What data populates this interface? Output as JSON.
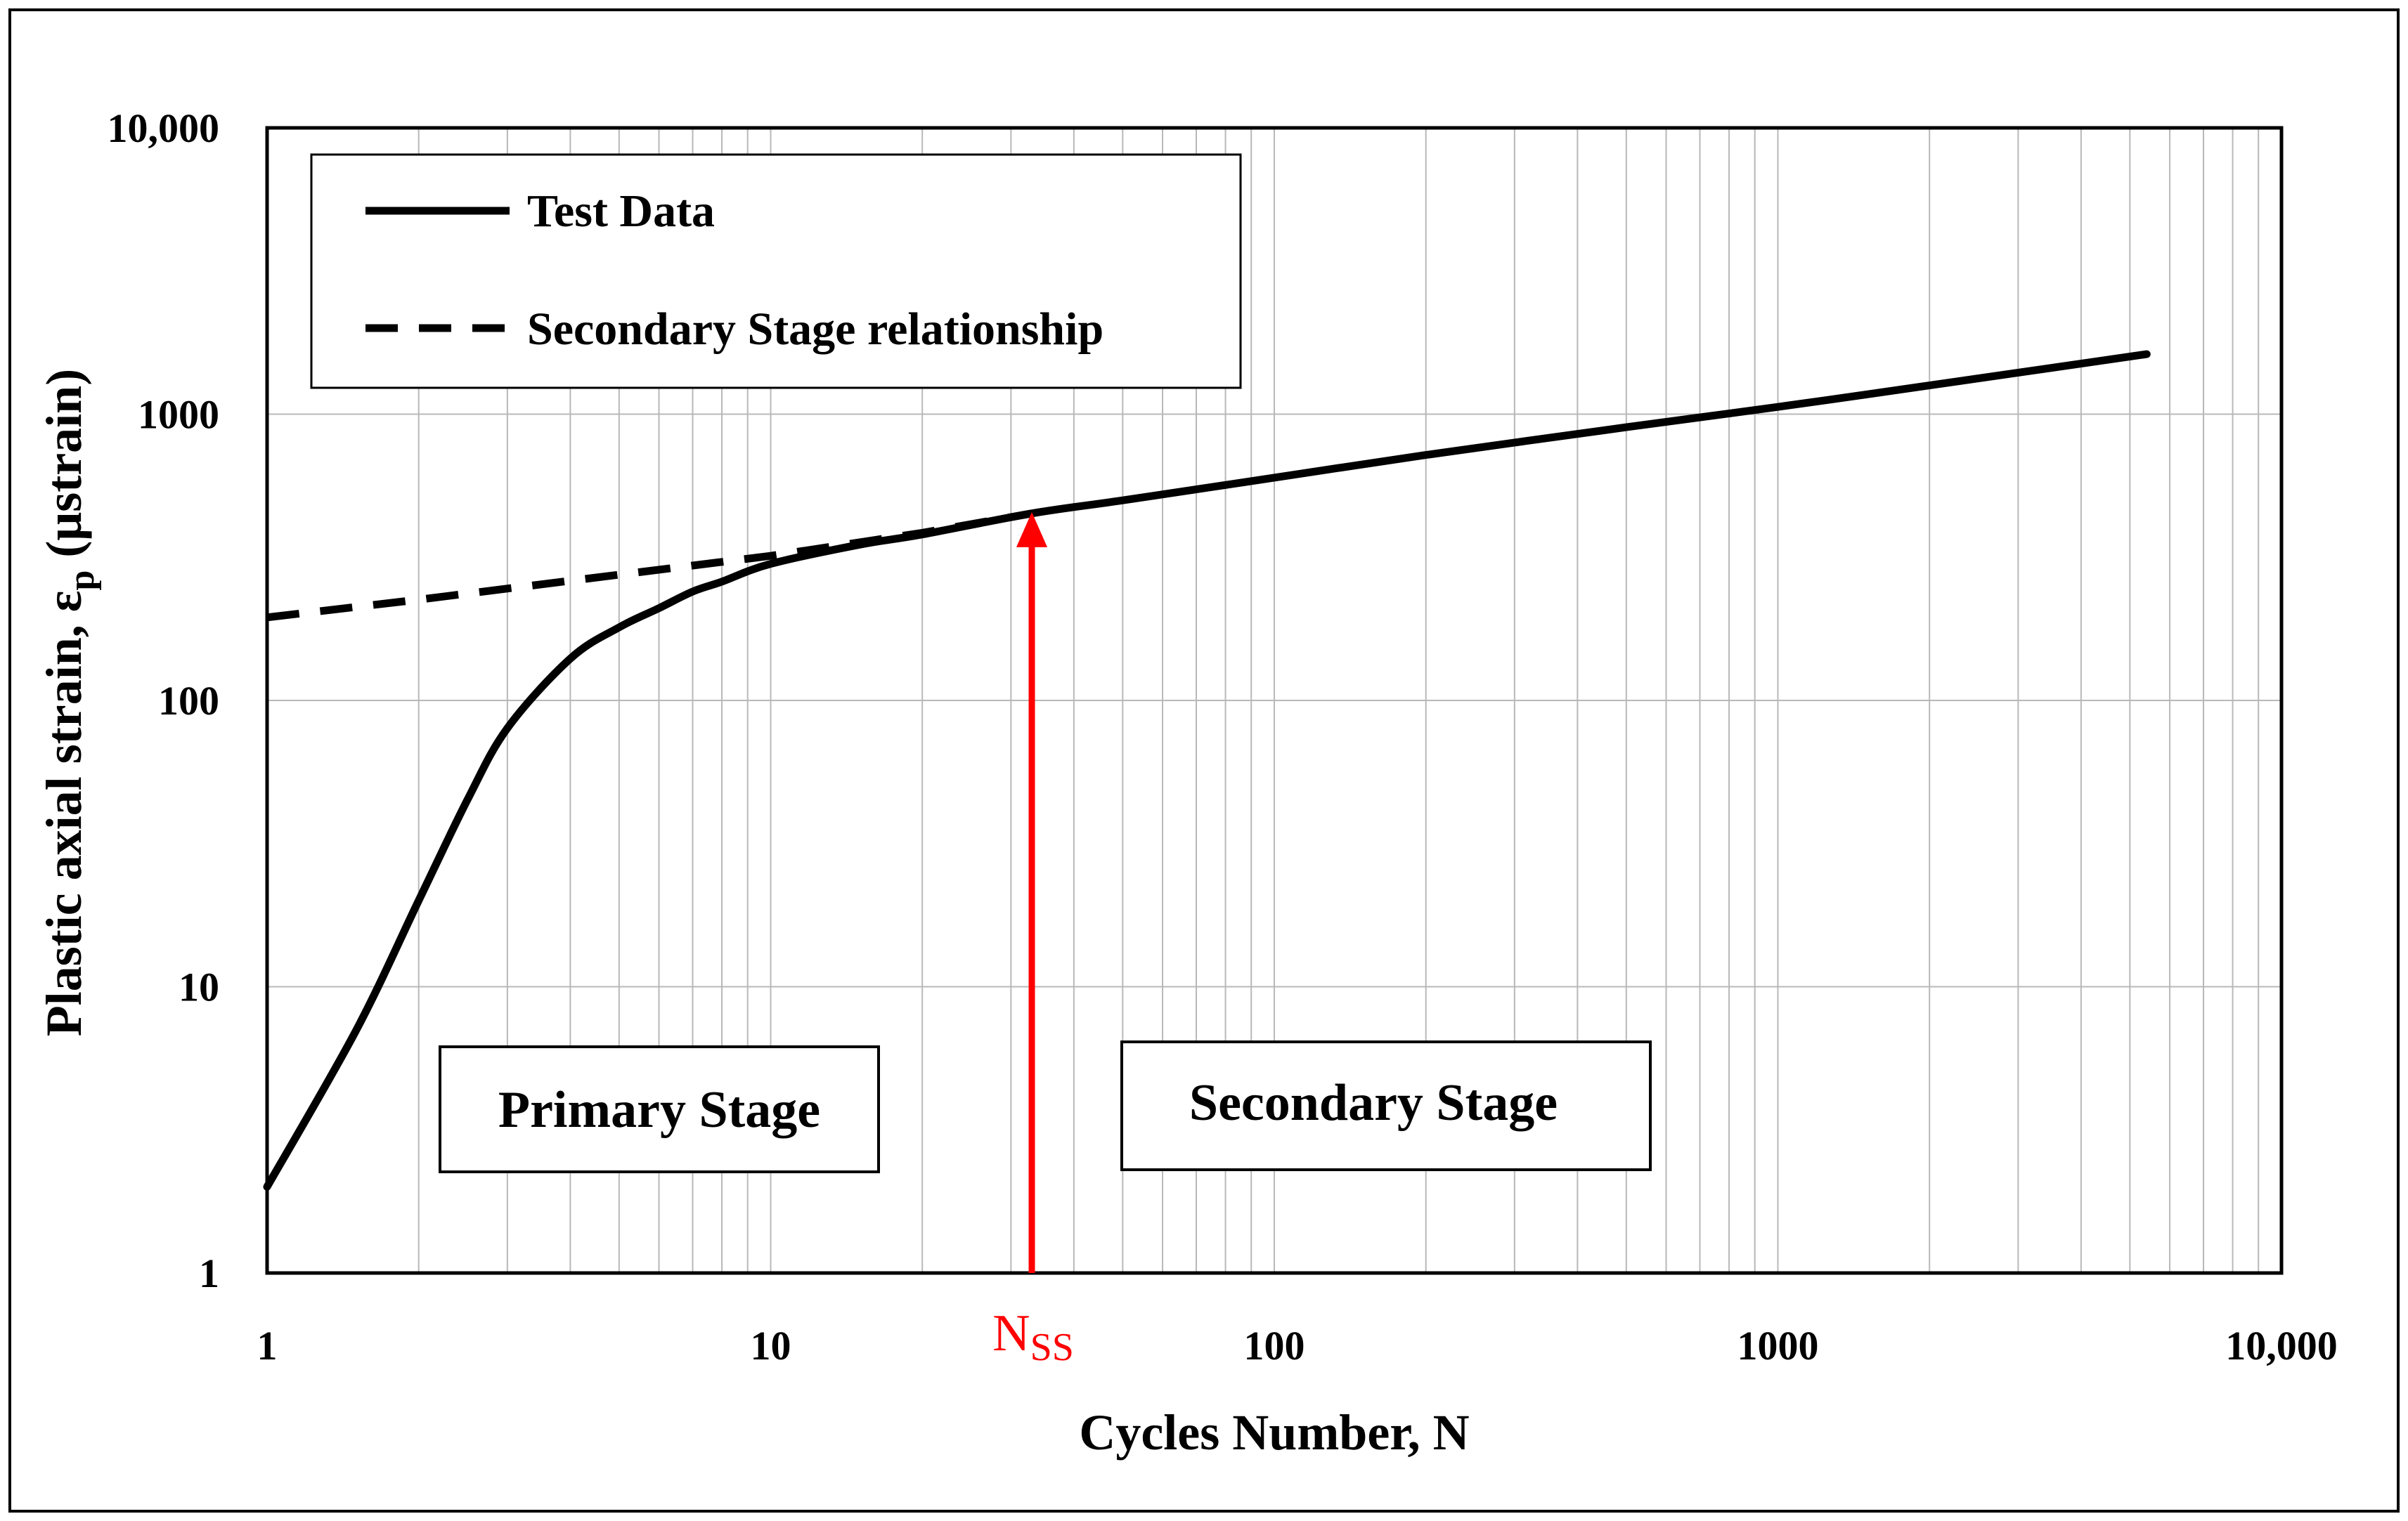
{
  "chart_data": {
    "type": "line",
    "xscale": "log",
    "yscale": "log",
    "xlim": [
      1,
      10000
    ],
    "ylim": [
      1,
      10000
    ],
    "xlabel": "Cycles Number, N",
    "ylabel_main": "Plastic axial strain, ε",
    "ylabel_sub": "p",
    "ylabel_unit": " (μstrain)",
    "x_ticks": [
      {
        "value": 1,
        "label": "1"
      },
      {
        "value": 10,
        "label": "10"
      },
      {
        "value": 100,
        "label": "100"
      },
      {
        "value": 1000,
        "label": "1000"
      },
      {
        "value": 10000,
        "label": "10,000"
      }
    ],
    "y_ticks": [
      {
        "value": 1,
        "label": "1"
      },
      {
        "value": 10,
        "label": "10"
      },
      {
        "value": 100,
        "label": "100"
      },
      {
        "value": 1000,
        "label": "1000"
      },
      {
        "value": 10000,
        "label": "10,000"
      }
    ],
    "grid": true,
    "legend_position": "top-left",
    "series": [
      {
        "name": "Test Data",
        "style": "solid",
        "color": "#000000",
        "x": [
          1,
          1.5,
          2,
          2.5,
          3,
          4,
          5,
          6,
          7,
          8,
          10,
          15,
          20,
          33,
          50,
          100,
          200,
          500,
          1000,
          2000,
          5400
        ],
        "y": [
          2,
          7,
          20,
          45,
          80,
          140,
          180,
          210,
          240,
          260,
          300,
          350,
          380,
          450,
          500,
          600,
          720,
          900,
          1060,
          1260,
          1620
        ]
      },
      {
        "name": "Secondary Stage relationship",
        "style": "dashed",
        "color": "#000000",
        "x": [
          1,
          2,
          5,
          10,
          20,
          33
        ],
        "y": [
          195,
          225,
          275,
          320,
          385,
          450
        ]
      }
    ],
    "annotations": {
      "nss_label_main": "N",
      "nss_label_sub": "SS",
      "nss_x": 33,
      "nss_y": 450,
      "nss_color": "#ff0000",
      "primary_label": "Primary Stage",
      "secondary_label": "Secondary Stage"
    }
  }
}
